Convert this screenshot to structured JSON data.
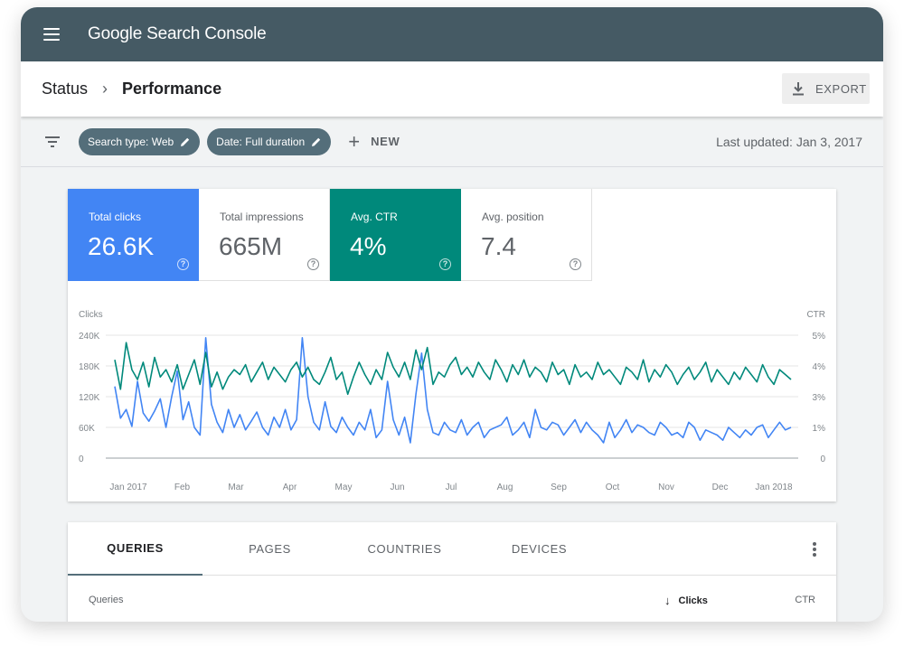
{
  "app": {
    "title": "Google Search Console"
  },
  "breadcrumb": {
    "parent": "Status",
    "separator": "›",
    "current": "Performance"
  },
  "toolbar": {
    "export_label": "EXPORT"
  },
  "filters": {
    "chips": [
      "Search type: Web",
      "Date: Full duration"
    ],
    "new_label": "NEW",
    "last_updated": "Last updated: Jan 3, 2017"
  },
  "metrics": [
    {
      "label": "Total clicks",
      "value": "26.6K",
      "help": "?"
    },
    {
      "label": "Total impressions",
      "value": "665M",
      "help": "?"
    },
    {
      "label": "Avg. CTR",
      "value": "4%",
      "help": "?"
    },
    {
      "label": "Avg. position",
      "value": "7.4",
      "help": "?"
    }
  ],
  "colors": {
    "clicks": "#4285f4",
    "ctr": "#00897b",
    "appbar": "#455a64"
  },
  "chart_data": {
    "type": "line",
    "y_left_label": "Clicks",
    "y_right_label": "CTR",
    "y_left_ticks": [
      "240K",
      "180K",
      "120K",
      "60K",
      "0"
    ],
    "y_right_ticks": [
      "5%",
      "4%",
      "3%",
      "1%",
      "0"
    ],
    "y_left_range": [
      0,
      240000
    ],
    "y_right_range": [
      0,
      5
    ],
    "x_ticks": [
      "Jan 2017",
      "Feb",
      "Mar",
      "Apr",
      "May",
      "Jun",
      "Jul",
      "Aug",
      "Sep",
      "Oct",
      "Nov",
      "Dec",
      "Jan 2018"
    ],
    "series": [
      {
        "name": "Clicks",
        "axis": "left",
        "values": [
          140000,
          78000,
          95000,
          62000,
          150000,
          88000,
          72000,
          92000,
          116000,
          60000,
          120000,
          170000,
          75000,
          110000,
          60000,
          45000,
          235000,
          105000,
          70000,
          50000,
          95000,
          60000,
          85000,
          55000,
          72000,
          90000,
          60000,
          45000,
          80000,
          60000,
          95000,
          55000,
          75000,
          235000,
          120000,
          70000,
          55000,
          110000,
          62000,
          50000,
          80000,
          60000,
          45000,
          70000,
          55000,
          95000,
          40000,
          55000,
          150000,
          75000,
          45000,
          80000,
          30000,
          125000,
          205000,
          95000,
          50000,
          45000,
          70000,
          55000,
          50000,
          75000,
          45000,
          60000,
          70000,
          40000,
          55000,
          60000,
          65000,
          80000,
          45000,
          55000,
          70000,
          40000,
          95000,
          60000,
          55000,
          70000,
          65000,
          45000,
          60000,
          75000,
          50000,
          70000,
          55000,
          45000,
          30000,
          70000,
          40000,
          55000,
          75000,
          50000,
          65000,
          60000,
          50000,
          45000,
          70000,
          60000,
          45000,
          50000,
          40000,
          70000,
          60000,
          35000,
          55000,
          50000,
          45000,
          35000,
          60000,
          50000,
          40000,
          55000,
          45000,
          60000,
          65000,
          40000,
          55000,
          70000,
          55000,
          60000
        ]
      },
      {
        "name": "CTR",
        "axis": "right",
        "values": [
          4.0,
          2.8,
          4.7,
          3.6,
          3.2,
          3.9,
          2.9,
          4.1,
          3.3,
          3.6,
          3.1,
          3.8,
          2.8,
          3.4,
          4.0,
          3.0,
          4.3,
          2.9,
          3.5,
          2.8,
          3.3,
          3.6,
          3.4,
          3.8,
          3.1,
          3.5,
          3.9,
          3.2,
          3.7,
          3.4,
          3.1,
          3.6,
          3.9,
          3.3,
          3.7,
          3.2,
          3.0,
          3.5,
          4.1,
          3.2,
          3.5,
          2.6,
          3.3,
          3.9,
          3.4,
          3.0,
          3.6,
          3.2,
          4.3,
          3.7,
          3.3,
          3.9,
          3.2,
          4.4,
          3.6,
          4.5,
          3.0,
          3.5,
          3.3,
          3.8,
          4.1,
          3.4,
          3.7,
          3.3,
          3.9,
          3.5,
          3.2,
          4.0,
          3.6,
          3.1,
          3.8,
          3.4,
          4.0,
          3.3,
          3.7,
          3.5,
          3.1,
          3.9,
          3.4,
          3.6,
          3.0,
          3.8,
          3.3,
          3.5,
          3.2,
          3.9,
          3.4,
          3.6,
          3.3,
          3.0,
          3.7,
          3.5,
          3.2,
          4.0,
          3.1,
          3.6,
          3.3,
          3.8,
          3.5,
          3.0,
          3.4,
          3.7,
          3.2,
          3.5,
          3.9,
          3.1,
          3.6,
          3.3,
          3.0,
          3.5,
          3.2,
          3.7,
          3.4,
          3.1,
          3.8,
          3.3,
          3.0,
          3.6,
          3.4,
          3.2
        ]
      }
    ],
    "grid": true,
    "legend": "none"
  },
  "table": {
    "tabs": [
      "QUERIES",
      "PAGES",
      "COUNTRIES",
      "DEVICES"
    ],
    "columns": {
      "queries": "Queries",
      "clicks": "Clicks",
      "ctr": "CTR"
    },
    "sort_arrow": "↓"
  }
}
